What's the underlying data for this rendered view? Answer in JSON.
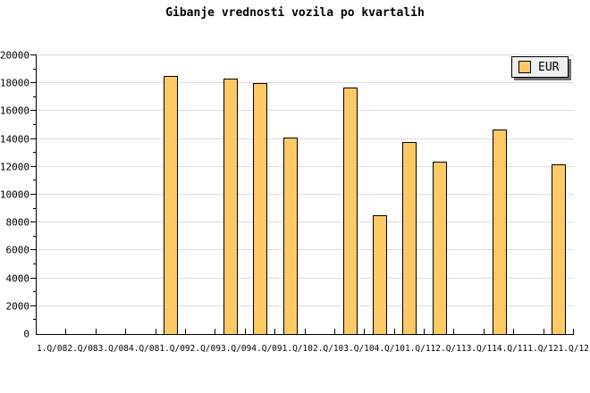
{
  "title": "Gibanje vrednosti vozila po kvartalih",
  "legend": {
    "label": "EUR"
  },
  "colors": {
    "bar_fill": "#FFC966",
    "bar_border": "#000000",
    "grid": "#DCDCDC",
    "axis": "#000000",
    "legend_bg": "#EFEFEF",
    "legend_shadow": "#6E6E6E",
    "background": "#FFFFFF",
    "text": "#000000"
  },
  "chart_data": {
    "type": "bar",
    "title": "Gibanje vrednosti vozila po kvartalih",
    "categories": [
      "1.Q/08",
      "2.Q/08",
      "3.Q/08",
      "4.Q/08",
      "1.Q/09",
      "2.Q/09",
      "3.Q/09",
      "4.Q/09",
      "1.Q/10",
      "2.Q/10",
      "3.Q/10",
      "4.Q/10",
      "1.Q/11",
      "2.Q/11",
      "3.Q/11",
      "4.Q/11",
      "1.Q/12",
      "1.Q/12"
    ],
    "series": [
      {
        "name": "EUR",
        "values": [
          null,
          null,
          null,
          null,
          18550,
          null,
          18350,
          18000,
          14100,
          null,
          17700,
          8500,
          13800,
          12400,
          null,
          14650,
          null,
          12150
        ]
      }
    ],
    "xlabel": "",
    "ylabel": "",
    "ylim": [
      0,
      20000
    ],
    "yticks": [
      0,
      2000,
      4000,
      6000,
      8000,
      10000,
      12000,
      14000,
      16000,
      18000,
      20000
    ],
    "minor_tick_step": 1000,
    "grid": "horizontal-major",
    "legend_position": "top-right",
    "legend_entries": [
      "EUR"
    ]
  }
}
